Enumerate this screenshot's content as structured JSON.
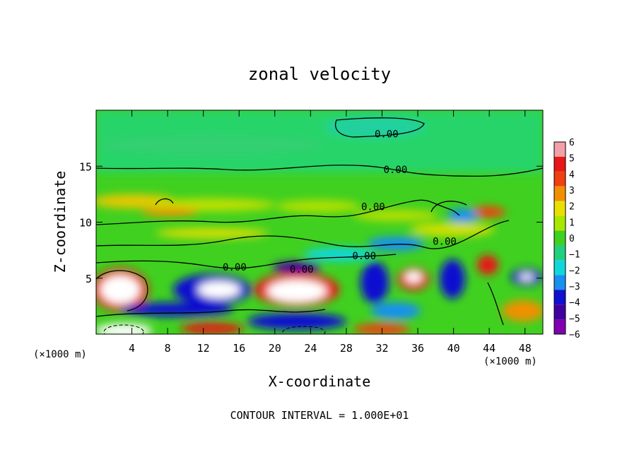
{
  "chart_data": {
    "type": "heatmap",
    "title": "zonal velocity",
    "xlabel": "X-coordinate",
    "ylabel": "Z-coordinate",
    "x_unit_left": "(×1000 m)",
    "x_unit_right": "(×1000 m)",
    "xlim": [
      0,
      50
    ],
    "ylim": [
      0,
      20
    ],
    "x_ticks": [
      4,
      8,
      12,
      16,
      20,
      24,
      28,
      32,
      36,
      40,
      44,
      48
    ],
    "y_ticks": [
      5,
      10,
      15
    ],
    "colorbar": {
      "levels": [
        6,
        5,
        4,
        3,
        2,
        1,
        0,
        -1,
        -2,
        -3,
        -4,
        -5,
        -6
      ],
      "level_labels": [
        "6",
        "5",
        "4",
        "3",
        "2",
        "1",
        "0",
        "−1",
        "−2",
        "−3",
        "−4",
        "−5",
        "−6"
      ],
      "colors": [
        "#f4a0a8",
        "#e81818",
        "#f04010",
        "#f09000",
        "#e8e000",
        "#a8e800",
        "#40d020",
        "#20d080",
        "#10d8d8",
        "#1890f0",
        "#1010d0",
        "#4000a0",
        "#8000b0"
      ]
    },
    "contour_labels": [
      {
        "text": "0.00",
        "x": 32.5,
        "y": 17.9
      },
      {
        "text": "0.00",
        "x": 33.5,
        "y": 14.7
      },
      {
        "text": "0.00",
        "x": 31.0,
        "y": 11.4
      },
      {
        "text": "0.00",
        "x": 39.0,
        "y": 8.3
      },
      {
        "text": "0.00",
        "x": 30.0,
        "y": 7.0
      },
      {
        "text": "0.00",
        "x": 15.5,
        "y": 6.0
      },
      {
        "text": "0.00",
        "x": 23.0,
        "y": 5.8
      }
    ],
    "footer": "CONTOUR INTERVAL = 1.000E+01"
  }
}
